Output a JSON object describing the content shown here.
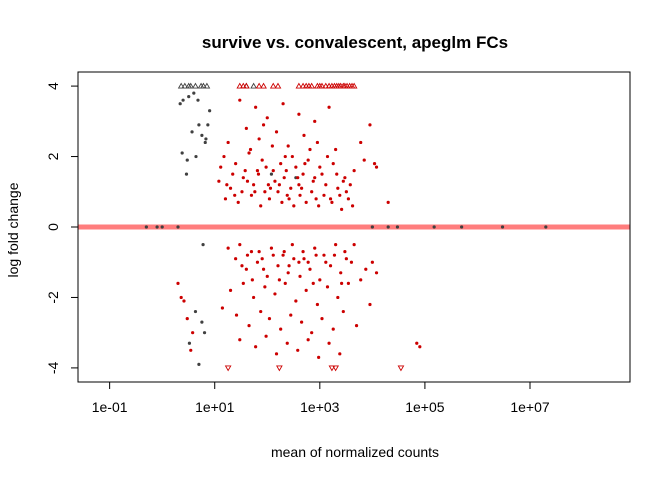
{
  "chart_data": {
    "type": "scatter",
    "title": "survive vs. convalescent, apeglm FCs",
    "xlabel": "mean of normalized counts",
    "ylabel": "log fold change",
    "x_scale": "log10",
    "xlim": [
      0.025,
      800000000.0
    ],
    "ylim": [
      -4.4,
      4.4
    ],
    "x_ticks": [
      {
        "value": 0.1,
        "label": "1e-01"
      },
      {
        "value": 10,
        "label": "1e+01"
      },
      {
        "value": 1000,
        "label": "1e+03"
      },
      {
        "value": 100000,
        "label": "1e+05"
      },
      {
        "value": 10000000,
        "label": "1e+07"
      }
    ],
    "y_ticks": [
      {
        "value": 4,
        "label": "4"
      },
      {
        "value": 2,
        "label": "2"
      },
      {
        "value": 0,
        "label": "0"
      },
      {
        "value": -2,
        "label": "-2"
      },
      {
        "value": -4,
        "label": "-4"
      }
    ],
    "reference_line": {
      "y": 0,
      "color": "#ff6666"
    },
    "colors": {
      "significant": "#cc0000",
      "not_significant": "#404040"
    },
    "clip_marker": "triangle",
    "clip_value": 4,
    "series": [
      {
        "key": "not_significant",
        "points": [
          [
            2.5,
            3.6
          ],
          [
            3.2,
            3.7
          ],
          [
            4.0,
            3.8
          ],
          [
            4.8,
            3.6
          ],
          [
            2.2,
            3.5
          ],
          [
            2.4,
            2.1
          ],
          [
            3.0,
            1.9
          ],
          [
            5.0,
            2.9
          ],
          [
            5.7,
            2.6
          ],
          [
            6.6,
            2.4
          ],
          [
            6.8,
            2.5
          ],
          [
            7.4,
            2.9
          ],
          [
            2.9,
            1.5
          ],
          [
            4.4,
            2.0
          ],
          [
            3.7,
            2.7
          ],
          [
            5.0,
            -3.9
          ],
          [
            5.7,
            -2.7
          ],
          [
            6.4,
            -3.0
          ],
          [
            3.3,
            -3.3
          ],
          [
            4.3,
            -2.4
          ],
          [
            6.0,
            -0.5
          ],
          [
            8.0,
            3.3
          ],
          [
            120,
            1.5
          ],
          [
            350,
            1.4
          ],
          [
            0.5,
            0.0
          ],
          [
            0.8,
            0.0
          ],
          [
            1.0,
            0.0
          ],
          [
            2.0,
            0.0
          ],
          [
            10000,
            0.0
          ],
          [
            20000,
            0.0
          ],
          [
            30000,
            0.0
          ],
          [
            150000,
            0.0
          ],
          [
            500000,
            0.0
          ],
          [
            3000000,
            0.0
          ],
          [
            20000000,
            0.0
          ]
        ],
        "clipped_up": [
          2.3,
          2.7,
          3.2,
          3.5,
          4.3,
          5.5,
          6.1,
          7.1,
          40,
          55
        ],
        "clipped_down": []
      },
      {
        "key": "significant",
        "points": [
          [
            30,
            3.6
          ],
          [
            60,
            3.4
          ],
          [
            100,
            3.1
          ],
          [
            200,
            3.5
          ],
          [
            400,
            3.2
          ],
          [
            800,
            3.0
          ],
          [
            1500,
            3.4
          ],
          [
            40,
            2.8
          ],
          [
            70,
            2.5
          ],
          [
            150,
            2.7
          ],
          [
            250,
            2.3
          ],
          [
            500,
            2.6
          ],
          [
            900,
            2.4
          ],
          [
            2000,
            2.2
          ],
          [
            15,
            2.0
          ],
          [
            25,
            1.8
          ],
          [
            45,
            2.1
          ],
          [
            80,
            1.9
          ],
          [
            130,
            1.6
          ],
          [
            220,
            2.0
          ],
          [
            350,
            1.7
          ],
          [
            600,
            1.9
          ],
          [
            1100,
            1.5
          ],
          [
            1800,
            1.8
          ],
          [
            3000,
            1.4
          ],
          [
            4500,
            1.6
          ],
          [
            12,
            1.3
          ],
          [
            20,
            1.1
          ],
          [
            35,
            1.4
          ],
          [
            55,
            1.2
          ],
          [
            90,
            1.0
          ],
          [
            140,
            1.3
          ],
          [
            240,
            0.9
          ],
          [
            400,
            1.2
          ],
          [
            700,
            1.0
          ],
          [
            1200,
            0.9
          ],
          [
            2200,
            1.1
          ],
          [
            3500,
            0.8
          ],
          [
            16,
            0.8
          ],
          [
            28,
            0.7
          ],
          [
            50,
            0.9
          ],
          [
            75,
            0.6
          ],
          [
            110,
            0.8
          ],
          [
            190,
            0.7
          ],
          [
            320,
            0.6
          ],
          [
            550,
            0.7
          ],
          [
            950,
            0.6
          ],
          [
            1600,
            0.8
          ],
          [
            2600,
            0.5
          ],
          [
            9000,
            2.9
          ],
          [
            11000,
            1.8
          ],
          [
            12000,
            1.7
          ],
          [
            20000,
            0.7
          ],
          [
            6000,
            2.4
          ],
          [
            7000,
            1.9
          ],
          [
            18,
            2.4
          ],
          [
            22,
            1.5
          ],
          [
            33,
            1.0
          ],
          [
            48,
            2.2
          ],
          [
            65,
            1.6
          ],
          [
            85,
            2.9
          ],
          [
            105,
            1.2
          ],
          [
            125,
            2.3
          ],
          [
            160,
            1.0
          ],
          [
            180,
            1.8
          ],
          [
            210,
            1.4
          ],
          [
            280,
            1.1
          ],
          [
            300,
            2.0
          ],
          [
            420,
            0.9
          ],
          [
            480,
            1.5
          ],
          [
            650,
            2.2
          ],
          [
            750,
            1.3
          ],
          [
            850,
            0.8
          ],
          [
            1000,
            1.7
          ],
          [
            1300,
            1.2
          ],
          [
            1400,
            2.0
          ],
          [
            1700,
            0.7
          ],
          [
            2100,
            1.5
          ],
          [
            2400,
            0.9
          ],
          [
            2800,
            1.3
          ],
          [
            3200,
            1.0
          ],
          [
            3800,
            1.2
          ],
          [
            4200,
            0.6
          ],
          [
            13,
            1.7
          ],
          [
            17,
            1.2
          ],
          [
            24,
            0.9
          ],
          [
            38,
            1.6
          ],
          [
            42,
            1.3
          ],
          [
            58,
            1.0
          ],
          [
            68,
            1.5
          ],
          [
            95,
            1.7
          ],
          [
            115,
            1.1
          ],
          [
            170,
            1.2
          ],
          [
            230,
            1.6
          ],
          [
            260,
            0.8
          ],
          [
            380,
            1.4
          ],
          [
            450,
            1.1
          ],
          [
            520,
            1.8
          ],
          [
            800,
            1.4
          ],
          [
            30,
            -0.5
          ],
          [
            50,
            -0.7
          ],
          [
            80,
            -0.9
          ],
          [
            120,
            -0.6
          ],
          [
            200,
            -0.8
          ],
          [
            300,
            -0.5
          ],
          [
            500,
            -0.9
          ],
          [
            800,
            -0.6
          ],
          [
            1200,
            -0.8
          ],
          [
            2000,
            -0.5
          ],
          [
            3000,
            -0.7
          ],
          [
            4500,
            -0.5
          ],
          [
            40,
            -1.2
          ],
          [
            65,
            -1.0
          ],
          [
            100,
            -1.4
          ],
          [
            160,
            -1.1
          ],
          [
            250,
            -1.3
          ],
          [
            400,
            -1.0
          ],
          [
            650,
            -1.2
          ],
          [
            1000,
            -1.5
          ],
          [
            1600,
            -1.1
          ],
          [
            2500,
            -1.3
          ],
          [
            4000,
            -1.0
          ],
          [
            20,
            -1.8
          ],
          [
            35,
            -1.6
          ],
          [
            55,
            -2.0
          ],
          [
            90,
            -1.7
          ],
          [
            140,
            -1.9
          ],
          [
            220,
            -1.6
          ],
          [
            350,
            -2.1
          ],
          [
            550,
            -1.8
          ],
          [
            900,
            -2.2
          ],
          [
            1400,
            -1.7
          ],
          [
            2200,
            -2.0
          ],
          [
            3500,
            -1.6
          ],
          [
            14,
            -2.3
          ],
          [
            26,
            -2.5
          ],
          [
            45,
            -2.8
          ],
          [
            75,
            -2.4
          ],
          [
            110,
            -2.6
          ],
          [
            180,
            -2.9
          ],
          [
            280,
            -2.5
          ],
          [
            450,
            -2.7
          ],
          [
            700,
            -3.0
          ],
          [
            1100,
            -2.6
          ],
          [
            1800,
            -2.9
          ],
          [
            2800,
            -2.4
          ],
          [
            5000,
            -2.8
          ],
          [
            30,
            -3.2
          ],
          [
            60,
            -3.4
          ],
          [
            95,
            -3.1
          ],
          [
            150,
            -3.6
          ],
          [
            240,
            -3.3
          ],
          [
            380,
            -3.5
          ],
          [
            600,
            -3.2
          ],
          [
            950,
            -3.7
          ],
          [
            1500,
            -3.3
          ],
          [
            2400,
            -3.6
          ],
          [
            6000,
            -1.5
          ],
          [
            7500,
            -1.2
          ],
          [
            10000,
            -1.0
          ],
          [
            12000,
            -1.3
          ],
          [
            9000,
            -2.2
          ],
          [
            2.0,
            -1.6
          ],
          [
            2.3,
            -2.0
          ],
          [
            2.6,
            -2.1
          ],
          [
            3.0,
            -2.6
          ],
          [
            3.5,
            -3.5
          ],
          [
            3.8,
            -3.0
          ],
          [
            70000,
            -3.3
          ],
          [
            80000,
            -3.4
          ],
          [
            18,
            -0.6
          ],
          [
            25,
            -0.9
          ],
          [
            33,
            -1.1
          ],
          [
            42,
            -0.8
          ],
          [
            52,
            -1.5
          ],
          [
            70,
            -0.7
          ],
          [
            85,
            -1.2
          ],
          [
            130,
            -0.8
          ],
          [
            170,
            -1.5
          ],
          [
            210,
            -0.7
          ],
          [
            260,
            -1.1
          ],
          [
            320,
            -0.9
          ],
          [
            420,
            -1.4
          ],
          [
            480,
            -0.7
          ],
          [
            600,
            -1.0
          ],
          [
            750,
            -1.6
          ],
          [
            850,
            -0.8
          ],
          [
            1300,
            -1.0
          ],
          [
            1900,
            -0.8
          ],
          [
            2600,
            -1.6
          ],
          [
            3200,
            -0.9
          ]
        ],
        "clipped_up": [
          30,
          35,
          40,
          70,
          85,
          130,
          160,
          400,
          480,
          550,
          620,
          700,
          900,
          1000,
          1100,
          1300,
          1500,
          1700,
          1900,
          2100,
          2300,
          2500,
          2800,
          3000,
          3300,
          3700,
          4100,
          4500
        ],
        "clipped_down": [
          18,
          170,
          1700,
          2000,
          35000
        ]
      }
    ]
  }
}
